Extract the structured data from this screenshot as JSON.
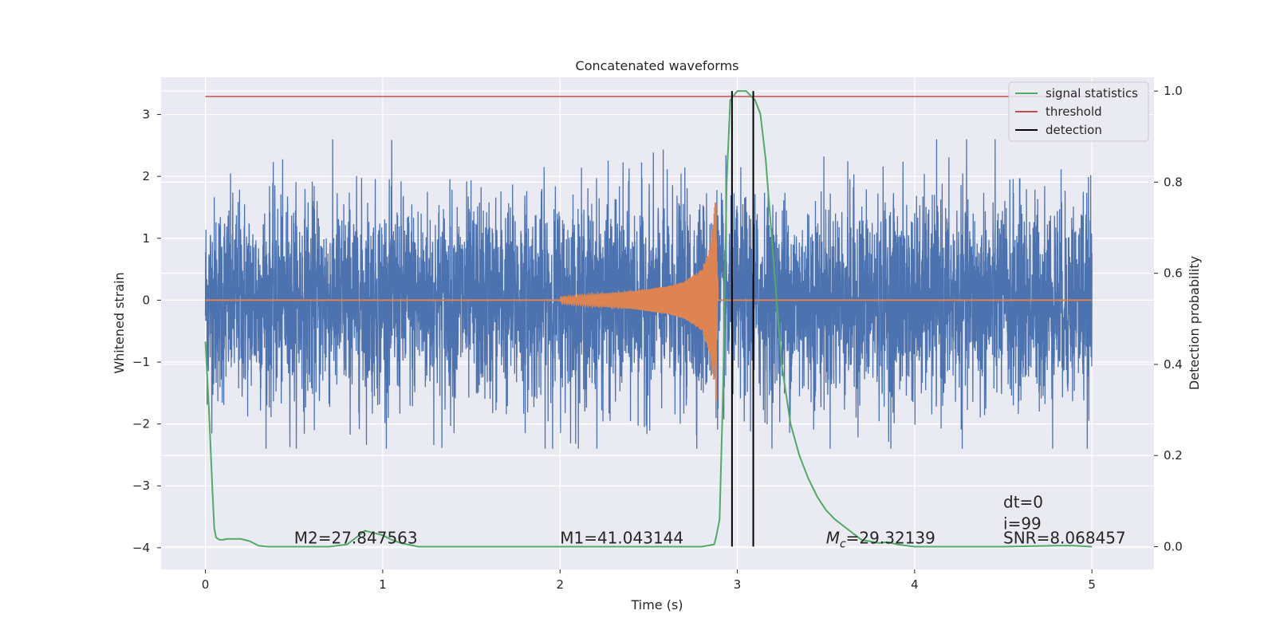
{
  "chart_data": {
    "type": "line",
    "title": "Concatenated waveforms",
    "xlabel": "Time (s)",
    "ylabel_left": "Whitened strain",
    "ylabel_right": "Detection probability",
    "xlim": [
      -0.25,
      5.35
    ],
    "ylim_left": [
      -4.35,
      3.6
    ],
    "ylim_right": [
      -0.05,
      1.03
    ],
    "x_ticks": [
      0,
      1,
      2,
      3,
      4,
      5
    ],
    "x_tick_labels": [
      "0",
      "1",
      "2",
      "3",
      "4",
      "5"
    ],
    "y_left_ticks": [
      3,
      2,
      1,
      0,
      -1,
      -2,
      -3,
      -4
    ],
    "y_left_tick_labels": [
      "3",
      "2",
      "1",
      "0",
      "−1",
      "−2",
      "−3",
      "−4"
    ],
    "y_right_ticks": [
      1.0,
      0.8,
      0.6,
      0.4,
      0.2,
      0.0
    ],
    "y_right_tick_labels": [
      "1.0",
      "0.8",
      "0.6",
      "0.4",
      "0.2",
      "0.0"
    ],
    "grid": true,
    "legend_position": "top-right",
    "legend": [
      {
        "label": "signal statistics",
        "color": "#55a868"
      },
      {
        "label": "threshold",
        "color": "#c44e52"
      },
      {
        "label": "detection",
        "color": "#000000"
      }
    ],
    "series": [
      {
        "role": "whitened-noise-strain",
        "axis": "left",
        "color": "#4c72b0",
        "description_values": "noise strain, mostly between about -2.4 and 2.6",
        "x_range": [
          0,
          5
        ],
        "amplitude_range": [
          -2.4,
          2.6
        ],
        "samples_per_second": 1024
      },
      {
        "role": "injected-waveform",
        "axis": "left",
        "color": "#dd8452",
        "x": [
          2.0,
          2.2,
          2.4,
          2.6,
          2.7,
          2.8,
          2.85,
          2.88,
          2.9,
          5.0
        ],
        "y_envelope": [
          0.05,
          0.1,
          0.14,
          0.22,
          0.3,
          0.5,
          0.9,
          1.7,
          0.0,
          0.0
        ]
      },
      {
        "name": "signal statistics",
        "axis": "right",
        "color": "#55a868",
        "x": [
          0.0,
          0.02,
          0.04,
          0.05,
          0.06,
          0.08,
          0.1,
          0.12,
          0.15,
          0.2,
          0.25,
          0.3,
          0.35,
          0.5,
          0.7,
          0.8,
          0.85,
          0.9,
          0.95,
          1.0,
          1.05,
          1.1,
          1.2,
          1.5,
          2.0,
          2.5,
          2.8,
          2.87,
          2.88,
          2.9,
          2.92,
          2.94,
          2.96,
          3.0,
          3.05,
          3.1,
          3.13,
          3.16,
          3.2,
          3.25,
          3.3,
          3.35,
          3.4,
          3.45,
          3.5,
          3.55,
          3.6,
          3.65,
          3.7,
          3.8,
          3.85,
          3.9,
          4.0,
          4.5,
          4.8,
          4.9,
          5.0
        ],
        "y": [
          0.45,
          0.3,
          0.12,
          0.04,
          0.02,
          0.015,
          0.015,
          0.017,
          0.017,
          0.017,
          0.012,
          0.002,
          0.0,
          0.0,
          0.0,
          0.005,
          0.02,
          0.035,
          0.03,
          0.025,
          0.015,
          0.008,
          0.0,
          0.0,
          0.0,
          0.0,
          0.0,
          0.005,
          0.02,
          0.06,
          0.35,
          0.8,
          0.98,
          1.0,
          1.0,
          0.98,
          0.95,
          0.85,
          0.65,
          0.4,
          0.27,
          0.2,
          0.15,
          0.11,
          0.08,
          0.06,
          0.045,
          0.03,
          0.015,
          0.008,
          0.01,
          0.005,
          0.0,
          0.0,
          0.002,
          0.002,
          0.0
        ]
      },
      {
        "name": "threshold",
        "axis": "right",
        "color": "#c44e52",
        "x": [
          0,
          5
        ],
        "y": [
          0.988,
          0.988
        ]
      },
      {
        "name": "detection",
        "axis": "right",
        "color": "#000000",
        "x_lines": [
          2.97,
          3.09
        ],
        "y_range": [
          0.0,
          1.0
        ]
      }
    ],
    "annotations": [
      {
        "text": "M2=27.847563",
        "x": 0.5,
        "y": -3.93
      },
      {
        "text": "M1=41.043144",
        "x": 2.0,
        "y": -3.93
      },
      {
        "text": "Mc_italic",
        "display": "=29.32139",
        "x": 3.5,
        "y": -3.93
      },
      {
        "text": "dt=0",
        "x": 4.5,
        "y": -3.35
      },
      {
        "text": "i=99",
        "x": 4.5,
        "y": -3.7
      },
      {
        "text": "SNR=8.068457",
        "x": 4.5,
        "y": -3.93
      }
    ],
    "mc_label": {
      "base": "M",
      "sub": "c",
      "value": "=29.32139"
    }
  }
}
